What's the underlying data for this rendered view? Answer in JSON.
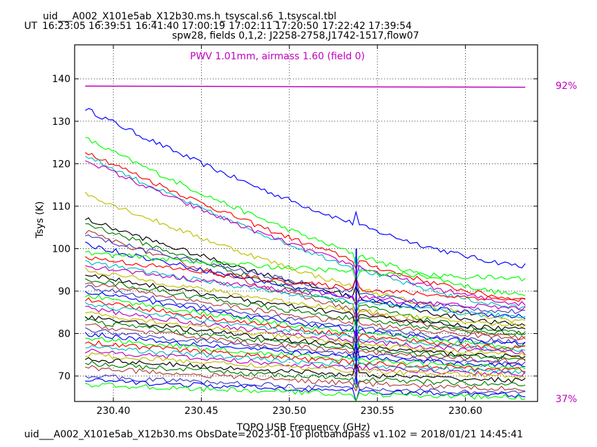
{
  "header": {
    "title": "uid___A002_X101e5ab_X12b30.ms.h_tsyscal.s6_1.tsyscal.tbl",
    "ut_label": "UT",
    "ut_times": [
      "16:23:05",
      "16:39:51",
      "16:41:40",
      "17:00:19",
      "17:02:11",
      "17:20:50",
      "17:22:42",
      "17:39:54"
    ],
    "subtitle": "spw28,  fields 0,1,2: J2258-2758,J1742-1517,flow07"
  },
  "footer": {
    "text": "uid___A002_X101e5ab_X12b30.ms  ObsDate=2023-01-10   plotbandpass v1.102 = 2018/01/21 14:45:41"
  },
  "colors": {
    "pwv": "#bf00bf",
    "series_palette": [
      "#0000ff",
      "#00ff00",
      "#ff0000",
      "#00bfbf",
      "#bf00bf",
      "#bfbf00",
      "#000000",
      "#007f00",
      "#b04040",
      "#3f3fbf"
    ]
  },
  "chart_data": {
    "type": "line",
    "title": "",
    "xlabel": "TOPO USB Frequency (GHz)",
    "ylabel": "Tsys (K)",
    "xlim": [
      230.378,
      230.641
    ],
    "ylim": [
      64,
      148
    ],
    "x_ticks": [
      "230.40",
      "230.45",
      "230.50",
      "230.55",
      "230.60"
    ],
    "y_ticks": [
      "70",
      "80",
      "90",
      "100",
      "110",
      "120",
      "130",
      "140"
    ],
    "grid": true,
    "annotation": "PWV 1.01mm, airmass 1.60 (field 0)",
    "right_axis_labels": {
      "top": "92%",
      "bottom": "37%"
    },
    "atmospheric_transmission_line": {
      "x": [
        230.384,
        230.634
      ],
      "y": [
        138.3,
        138.0
      ]
    },
    "spectral_spike_x": 230.538,
    "series_samples": [
      {
        "y_start": 133.0,
        "y_end": 96.0
      },
      {
        "y_start": 126.0,
        "y_end": 89.0
      },
      {
        "y_start": 123.0,
        "y_end": 88.0
      },
      {
        "y_start": 122.0,
        "y_end": 86.0
      },
      {
        "y_start": 121.0,
        "y_end": 87.0
      },
      {
        "y_start": 113.0,
        "y_end": 83.0
      },
      {
        "y_start": 107.0,
        "y_end": 82.0
      },
      {
        "y_start": 106.0,
        "y_end": 80.0
      },
      {
        "y_start": 104.0,
        "y_end": 79.0
      },
      {
        "y_start": 103.0,
        "y_end": 85.0
      },
      {
        "y_start": 101.0,
        "y_end": 84.0
      },
      {
        "y_start": 99.0,
        "y_end": 93.0
      },
      {
        "y_start": 98.0,
        "y_end": 88.0
      },
      {
        "y_start": 97.0,
        "y_end": 84.0
      },
      {
        "y_start": 96.0,
        "y_end": 86.0
      },
      {
        "y_start": 95.0,
        "y_end": 82.0
      },
      {
        "y_start": 94.0,
        "y_end": 81.0
      },
      {
        "y_start": 93.0,
        "y_end": 80.0
      },
      {
        "y_start": 92.0,
        "y_end": 79.0
      },
      {
        "y_start": 91.0,
        "y_end": 78.0
      },
      {
        "y_start": 90.0,
        "y_end": 77.5
      },
      {
        "y_start": 89.0,
        "y_end": 77.0
      },
      {
        "y_start": 88.0,
        "y_end": 76.5
      },
      {
        "y_start": 87.0,
        "y_end": 76.0
      },
      {
        "y_start": 86.0,
        "y_end": 75.5
      },
      {
        "y_start": 85.0,
        "y_end": 75.0
      },
      {
        "y_start": 84.0,
        "y_end": 74.5
      },
      {
        "y_start": 83.0,
        "y_end": 74.0
      },
      {
        "y_start": 82.0,
        "y_end": 73.5
      },
      {
        "y_start": 81.0,
        "y_end": 73.0
      },
      {
        "y_start": 80.0,
        "y_end": 72.5
      },
      {
        "y_start": 79.0,
        "y_end": 72.0
      },
      {
        "y_start": 78.0,
        "y_end": 71.5
      },
      {
        "y_start": 77.0,
        "y_end": 71.0
      },
      {
        "y_start": 76.0,
        "y_end": 70.5
      },
      {
        "y_start": 75.0,
        "y_end": 70.0
      },
      {
        "y_start": 74.0,
        "y_end": 69.0
      },
      {
        "y_start": 73.0,
        "y_end": 68.0
      },
      {
        "y_start": 72.0,
        "y_end": 67.0
      },
      {
        "y_start": 70.0,
        "y_end": 66.0
      },
      {
        "y_start": 69.0,
        "y_end": 65.5
      },
      {
        "y_start": 68.0,
        "y_end": 65.0
      }
    ]
  }
}
